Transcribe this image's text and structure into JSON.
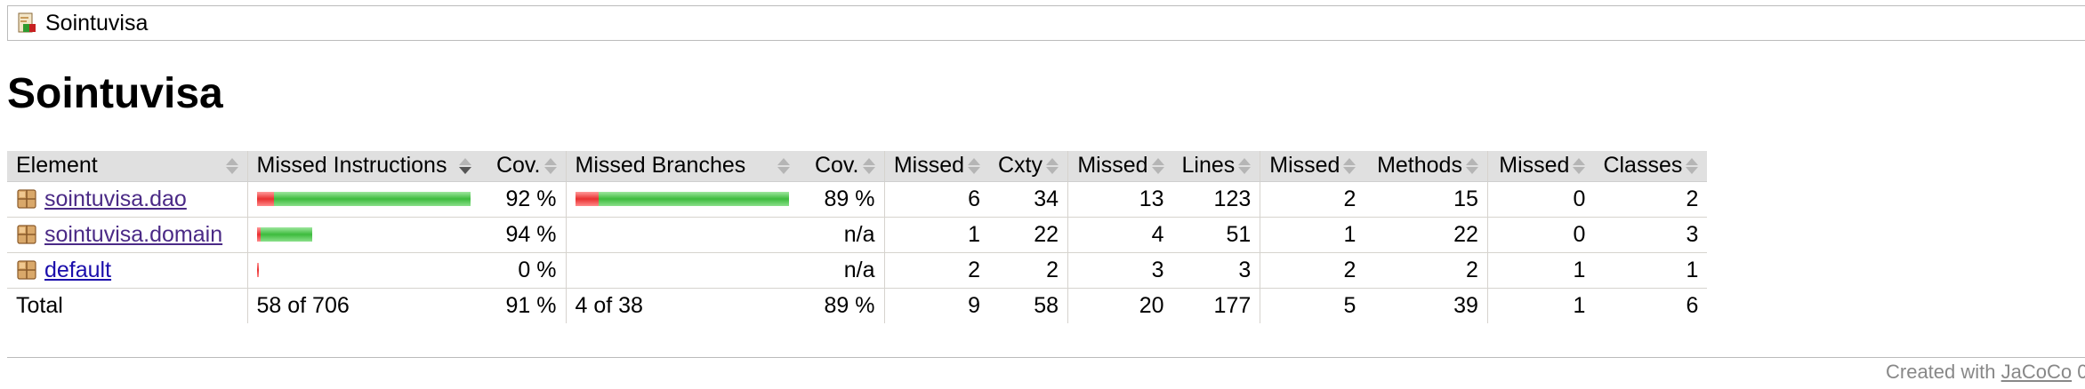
{
  "breadcrumb": {
    "icon": "report-icon",
    "label": "Sointuvisa"
  },
  "page_title": "Sointuvisa",
  "table": {
    "headers": [
      "Element",
      "Missed Instructions",
      "Cov.",
      "Missed Branches",
      "Cov.",
      "Missed",
      "Cxty",
      "Missed",
      "Lines",
      "Missed",
      "Methods",
      "Missed",
      "Classes"
    ],
    "rows": [
      {
        "icon": "package-icon",
        "name": "sointuvisa.dao",
        "instr_missed_fraction": 0.08,
        "instr_bar_relative_total": 1.0,
        "instr_cov": "92 %",
        "branch_missed_fraction": 0.11,
        "branch_bar_relative_total": 1.0,
        "branch_cov": "89 %",
        "cxty_missed": "6",
        "cxty": "34",
        "lines_missed": "13",
        "lines": "123",
        "methods_missed": "2",
        "methods": "15",
        "classes_missed": "0",
        "classes": "2"
      },
      {
        "icon": "package-icon",
        "name": "sointuvisa.domain",
        "instr_missed_fraction": 0.06,
        "instr_bar_relative_total": 0.26,
        "instr_cov": "94 %",
        "branch_missed_fraction": null,
        "branch_bar_relative_total": 0,
        "branch_cov": "n/a",
        "cxty_missed": "1",
        "cxty": "22",
        "lines_missed": "4",
        "lines": "51",
        "methods_missed": "1",
        "methods": "22",
        "classes_missed": "0",
        "classes": "3"
      },
      {
        "icon": "package-icon",
        "name": "default",
        "instr_missed_fraction": 1.0,
        "instr_bar_relative_total": 0.01,
        "instr_cov": "0 %",
        "branch_missed_fraction": null,
        "branch_bar_relative_total": 0,
        "branch_cov": "n/a",
        "cxty_missed": "2",
        "cxty": "2",
        "lines_missed": "3",
        "lines": "3",
        "methods_missed": "2",
        "methods": "2",
        "classes_missed": "1",
        "classes": "1"
      }
    ],
    "total": {
      "label": "Total",
      "instr": "58 of 706",
      "instr_cov": "91 %",
      "branch": "4 of 38",
      "branch_cov": "89 %",
      "cxty_missed": "9",
      "cxty": "58",
      "lines_missed": "20",
      "lines": "177",
      "methods_missed": "5",
      "methods": "39",
      "classes_missed": "1",
      "classes": "6"
    }
  },
  "footer": {
    "prefix": "Created with ",
    "link": "JaCoCo",
    "suffix": " 0"
  },
  "colors": {
    "covered": "#3dbb3d",
    "missed": "#e83030",
    "header_bg": "#e0e0e0",
    "link": "#1a0dab"
  }
}
